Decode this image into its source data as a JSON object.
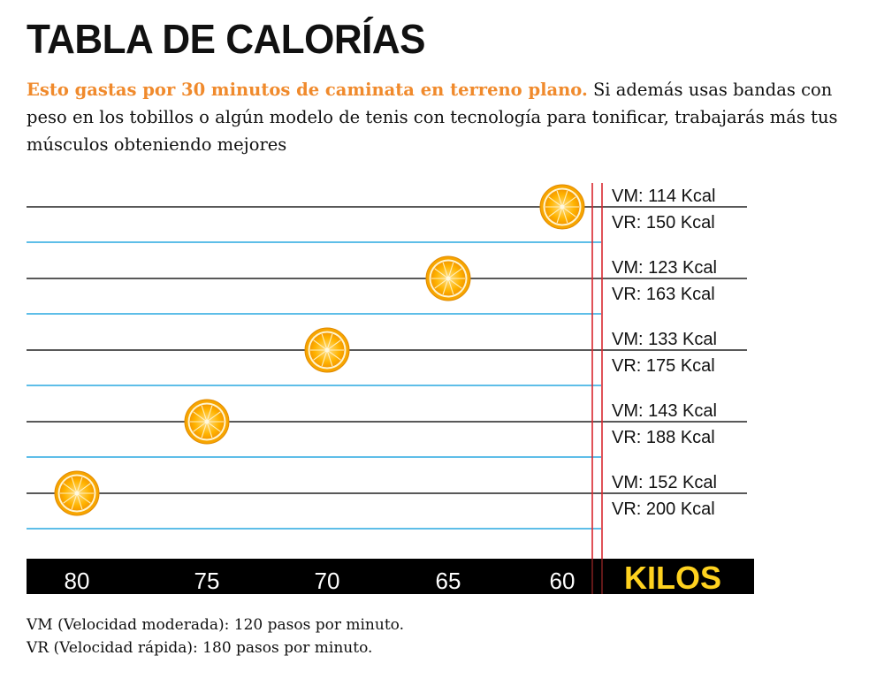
{
  "title": "TABLA DE CALORÍAS",
  "intro": {
    "lead": "Esto gastas por 30 minutos de caminata en terreno plano.",
    "rest": " Si además usas bandas con peso en los tobillos o algún modelo de tenis con tecnología para tonificar, trabajarás más tus músculos obteniendo mejores"
  },
  "chart_data": {
    "type": "scatter",
    "x_axis_label": "KILOS",
    "x_ticks": [
      "80",
      "75",
      "70",
      "65",
      "60"
    ],
    "points": [
      {
        "kilos": 60,
        "vm_label": "VM: 114 Kcal",
        "vr_label": "VR:  150 Kcal",
        "vm": 114,
        "vr": 150
      },
      {
        "kilos": 65,
        "vm_label": "VM: 123 Kcal",
        "vr_label": "VR:  163 Kcal",
        "vm": 123,
        "vr": 163
      },
      {
        "kilos": 70,
        "vm_label": "VM: 133 Kcal",
        "vr_label": "VR:  175 Kcal",
        "vm": 133,
        "vr": 175
      },
      {
        "kilos": 75,
        "vm_label": "VM: 143 Kcal",
        "vr_label": "VR:  188 Kcal",
        "vm": 143,
        "vr": 188
      },
      {
        "kilos": 80,
        "vm_label": "VM: 152 Kcal",
        "vr_label": "VR:  200 Kcal",
        "vm": 152,
        "vr": 200
      }
    ],
    "marker": "orange-slice-icon",
    "colors": {
      "vm_line": "#222222",
      "vr_line": "#29a8e0",
      "axis_bar": "#000000",
      "axis_label": "#ffd21f",
      "divider": "#d9272e",
      "marker_fill": "#ffb400"
    }
  },
  "footnotes": {
    "vm": "VM (Velocidad moderada): 120 pasos por minuto.",
    "vr": "VR (Velocidad rápida): 180 pasos por minuto."
  }
}
